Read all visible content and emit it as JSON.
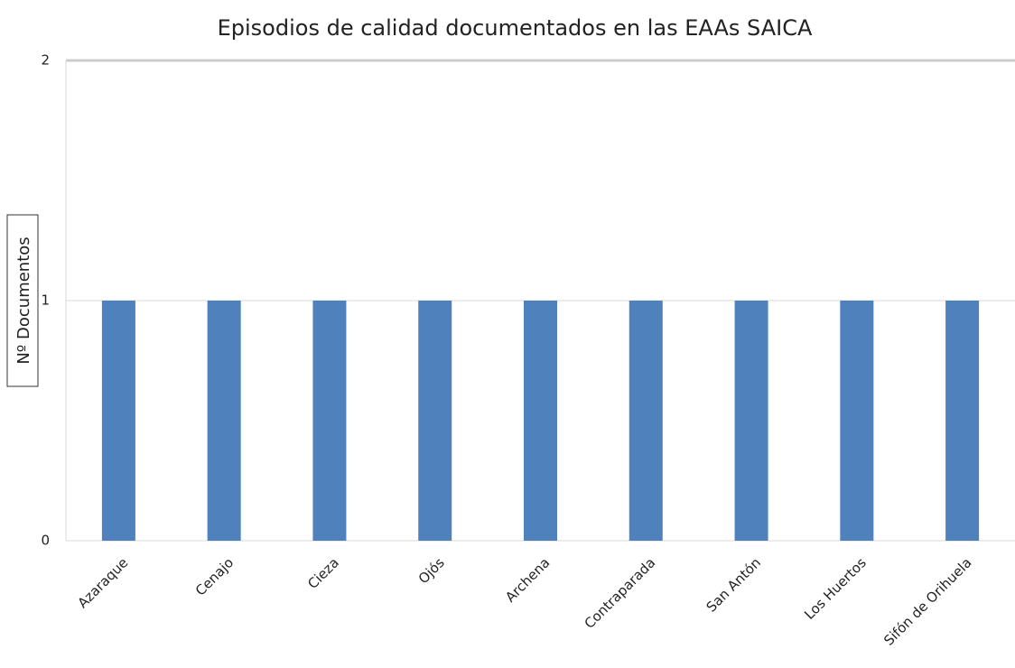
{
  "chart_data": {
    "type": "bar",
    "title": "Episodios de calidad documentados en las EAAs SAICA",
    "y_label": "Nº Documentos",
    "categories": [
      "Azaraque",
      "Cenajo",
      "Cieza",
      "Ojós",
      "Archena",
      "Contraparada",
      "San Antón",
      "Los Huertos",
      "Sifón de Orihuela"
    ],
    "values": [
      1,
      1,
      1,
      1,
      1,
      1,
      1,
      1,
      1
    ],
    "color": "#4f81bd",
    "ylim": [
      0,
      2
    ],
    "yticks": [
      0,
      1,
      2
    ],
    "grid": true
  }
}
